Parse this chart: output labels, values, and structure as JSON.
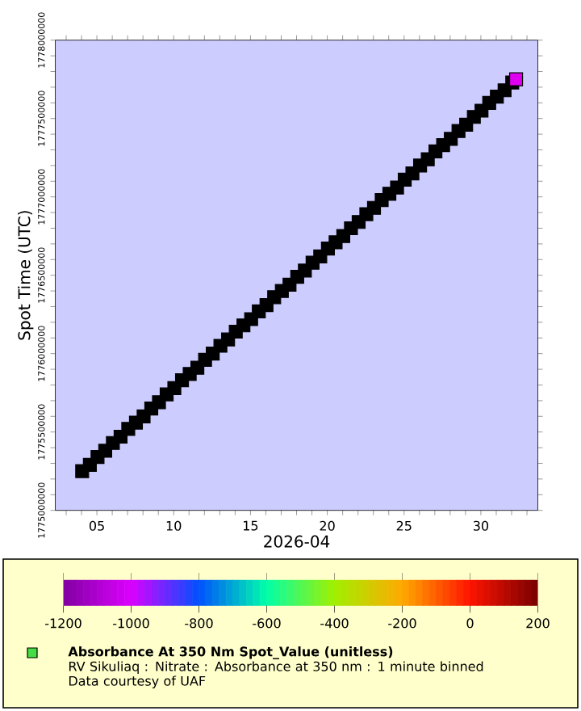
{
  "chart_data": {
    "type": "scatter",
    "xlabel": "2026-04",
    "ylabel": "Spot Time (UTC)",
    "annotations": [
      "RV Sikuliaq : Nitrate : Absorbance at 350 nm : 1 minute binned",
      "Data courtesy of UAF"
    ],
    "x": [
      "2026-04-04T01:00",
      "2026-04-04T13:00",
      "2026-04-05T01:00",
      "2026-04-05T13:00",
      "2026-04-06T01:00",
      "2026-04-06T13:00",
      "2026-04-07T01:00",
      "2026-04-07T13:00",
      "2026-04-08T01:00",
      "2026-04-08T13:00",
      "2026-04-09T01:00",
      "2026-04-09T13:00",
      "2026-04-10T01:00",
      "2026-04-10T13:00",
      "2026-04-11T01:00",
      "2026-04-11T13:00",
      "2026-04-12T01:00",
      "2026-04-12T13:00",
      "2026-04-13T01:00",
      "2026-04-13T13:00",
      "2026-04-14T01:00",
      "2026-04-14T13:00",
      "2026-04-15T01:00",
      "2026-04-15T13:00",
      "2026-04-16T01:00",
      "2026-04-16T13:00",
      "2026-04-17T01:00",
      "2026-04-17T13:00",
      "2026-04-18T01:00",
      "2026-04-18T13:00",
      "2026-04-19T01:00",
      "2026-04-19T13:00",
      "2026-04-20T01:00",
      "2026-04-20T13:00",
      "2026-04-21T01:00",
      "2026-04-21T13:00",
      "2026-04-22T01:00",
      "2026-04-22T13:00",
      "2026-04-23T01:00",
      "2026-04-23T13:00",
      "2026-04-24T01:00",
      "2026-04-24T13:00",
      "2026-04-25T01:00",
      "2026-04-25T13:00",
      "2026-04-26T01:00",
      "2026-04-26T13:00",
      "2026-04-27T01:00",
      "2026-04-27T13:00",
      "2026-04-28T01:00",
      "2026-04-28T13:00",
      "2026-04-29T01:00",
      "2026-04-29T13:00",
      "2026-04-30T01:00",
      "2026-04-30T13:00",
      "2026-05-01T01:00",
      "2026-05-01T13:00",
      "2026-05-02T01:00",
      "2026-05-02T07:00"
    ],
    "series": [
      {
        "name": "Absorbance At 350 Nm Spot_Value (unitless)",
        "color": "#44dd44",
        "colors": [
          "#000000",
          "#000000",
          "#000000",
          "#000000",
          "#000000",
          "#000000",
          "#000000",
          "#000000",
          "#000000",
          "#000000",
          "#000000",
          "#000000",
          "#000000",
          "#000000",
          "#000000",
          "#000000",
          "#000000",
          "#000000",
          "#000000",
          "#000000",
          "#000000",
          "#000000",
          "#000000",
          "#000000",
          "#000000",
          "#000000",
          "#000000",
          "#000000",
          "#000000",
          "#000000",
          "#000000",
          "#000000",
          "#000000",
          "#000000",
          "#000000",
          "#000000",
          "#000000",
          "#000000",
          "#000000",
          "#000000",
          "#000000",
          "#000000",
          "#000000",
          "#000000",
          "#000000",
          "#000000",
          "#000000",
          "#000000",
          "#000000",
          "#000000",
          "#000000",
          "#000000",
          "#000000",
          "#000000",
          "#000000",
          "#000000",
          "#000000",
          "#e000f0"
        ],
        "values": [
          1775250000,
          1775290000,
          1775340000,
          1775380000,
          1775430000,
          1775470000,
          1775520000,
          1775560000,
          1775600000,
          1775650000,
          1775690000,
          1775740000,
          1775780000,
          1775830000,
          1775870000,
          1775910000,
          1775960000,
          1776000000,
          1776050000,
          1776090000,
          1776140000,
          1776180000,
          1776220000,
          1776270000,
          1776310000,
          1776360000,
          1776400000,
          1776440000,
          1776490000,
          1776530000,
          1776580000,
          1776620000,
          1776670000,
          1776710000,
          1776750000,
          1776800000,
          1776840000,
          1776890000,
          1776930000,
          1776980000,
          1777020000,
          1777060000,
          1777110000,
          1777150000,
          1777200000,
          1777240000,
          1777290000,
          1777330000,
          1777370000,
          1777420000,
          1777460000,
          1777510000,
          1777550000,
          1777600000,
          1777640000,
          1777680000,
          1777730000,
          1777750000
        ]
      }
    ],
    "marker": "square",
    "legend": "bottom",
    "xlim": [
      "2026-04-02T07:00",
      "2026-05-03T17:00"
    ],
    "xticks": [
      {
        "value": "2026-04-03",
        "label": null
      },
      {
        "value": "2026-04-04",
        "label": null
      },
      {
        "value": "2026-04-05",
        "label": "05"
      },
      {
        "value": "2026-04-06",
        "label": null
      },
      {
        "value": "2026-04-07",
        "label": null
      },
      {
        "value": "2026-04-08",
        "label": null
      },
      {
        "value": "2026-04-09",
        "label": null
      },
      {
        "value": "2026-04-10",
        "label": "10"
      },
      {
        "value": "2026-04-11",
        "label": null
      },
      {
        "value": "2026-04-12",
        "label": null
      },
      {
        "value": "2026-04-13",
        "label": null
      },
      {
        "value": "2026-04-14",
        "label": null
      },
      {
        "value": "2026-04-15",
        "label": "15"
      },
      {
        "value": "2026-04-16",
        "label": null
      },
      {
        "value": "2026-04-17",
        "label": null
      },
      {
        "value": "2026-04-18",
        "label": null
      },
      {
        "value": "2026-04-19",
        "label": null
      },
      {
        "value": "2026-04-20",
        "label": "20"
      },
      {
        "value": "2026-04-21",
        "label": null
      },
      {
        "value": "2026-04-22",
        "label": null
      },
      {
        "value": "2026-04-23",
        "label": null
      },
      {
        "value": "2026-04-24",
        "label": null
      },
      {
        "value": "2026-04-25",
        "label": "25"
      },
      {
        "value": "2026-04-26",
        "label": null
      },
      {
        "value": "2026-04-27",
        "label": null
      },
      {
        "value": "2026-04-28",
        "label": null
      },
      {
        "value": "2026-04-29",
        "label": null
      },
      {
        "value": "2026-04-30",
        "label": "30"
      },
      {
        "value": "2026-05-01",
        "label": null
      },
      {
        "value": "2026-05-02",
        "label": null
      },
      {
        "value": "2026-05-03",
        "label": null
      }
    ],
    "ylim": [
      1775000000,
      1778000000
    ],
    "yticks": [
      1775000000,
      {
        "value": 1775100000,
        "label": null
      },
      {
        "value": 1775200000,
        "label": null
      },
      {
        "value": 1775300000,
        "label": null
      },
      {
        "value": 1775400000,
        "label": null
      },
      1775500000,
      {
        "value": 1775600000,
        "label": null
      },
      {
        "value": 1775700000,
        "label": null
      },
      {
        "value": 1775800000,
        "label": null
      },
      {
        "value": 1775900000,
        "label": null
      },
      1776000000,
      {
        "value": 1776100000,
        "label": null
      },
      {
        "value": 1776200000,
        "label": null
      },
      {
        "value": 1776300000,
        "label": null
      },
      {
        "value": 1776400000,
        "label": null
      },
      1776500000,
      {
        "value": 1776600000,
        "label": null
      },
      {
        "value": 1776700000,
        "label": null
      },
      {
        "value": 1776800000,
        "label": null
      },
      {
        "value": 1776900000,
        "label": null
      },
      1777000000,
      {
        "value": 1777100000,
        "label": null
      },
      {
        "value": 1777200000,
        "label": null
      },
      {
        "value": 1777300000,
        "label": null
      },
      {
        "value": 1777400000,
        "label": null
      },
      1777500000,
      {
        "value": 1777600000,
        "label": null
      },
      {
        "value": 1777700000,
        "label": null
      },
      {
        "value": 1777800000,
        "label": null
      },
      {
        "value": 1777900000,
        "label": null
      },
      1778000000
    ],
    "clim": [
      -1200,
      200
    ],
    "cticks": [
      -1200,
      -1000,
      -800,
      -600,
      -400,
      -200,
      0,
      200
    ]
  }
}
